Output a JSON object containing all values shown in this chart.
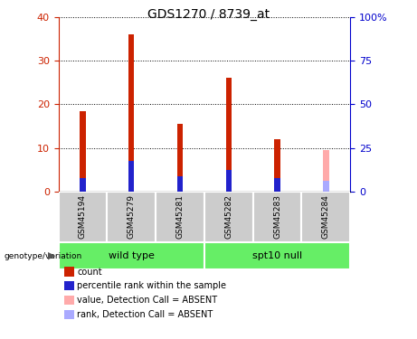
{
  "title": "GDS1270 / 8739_at",
  "categories": [
    "GSM45194",
    "GSM45279",
    "GSM45281",
    "GSM45282",
    "GSM45283",
    "GSM45284"
  ],
  "red_values": [
    18.5,
    36.0,
    15.5,
    26.0,
    12.0,
    0
  ],
  "blue_values": [
    3.0,
    7.0,
    3.5,
    5.0,
    3.0,
    0
  ],
  "pink_values": [
    0,
    0,
    0,
    0,
    0,
    9.5
  ],
  "lightblue_values": [
    0,
    0,
    0,
    0,
    0,
    2.5
  ],
  "left_ylim": [
    0,
    40
  ],
  "right_ylim": [
    0,
    100
  ],
  "left_yticks": [
    0,
    10,
    20,
    30,
    40
  ],
  "right_yticks": [
    0,
    25,
    50,
    75,
    100
  ],
  "right_yticklabels": [
    "0",
    "25",
    "50",
    "75",
    "100%"
  ],
  "left_color": "#cc2200",
  "right_color": "#0000cc",
  "bar_color_red": "#cc2200",
  "bar_color_blue": "#2222cc",
  "bar_color_pink": "#ffaaaa",
  "bar_color_lightblue": "#aaaaff",
  "plot_bg": "#ffffff",
  "wild_type_label": "wild type",
  "spt10_label": "spt10 null",
  "group_bg_color": "#66ee66",
  "sample_bg_color": "#cccccc",
  "genotype_label": "genotype/variation",
  "legend_items": [
    {
      "color": "#cc2200",
      "label": "count"
    },
    {
      "color": "#2222cc",
      "label": "percentile rank within the sample"
    },
    {
      "color": "#ffaaaa",
      "label": "value, Detection Call = ABSENT"
    },
    {
      "color": "#aaaaff",
      "label": "rank, Detection Call = ABSENT"
    }
  ],
  "bar_width": 0.12
}
